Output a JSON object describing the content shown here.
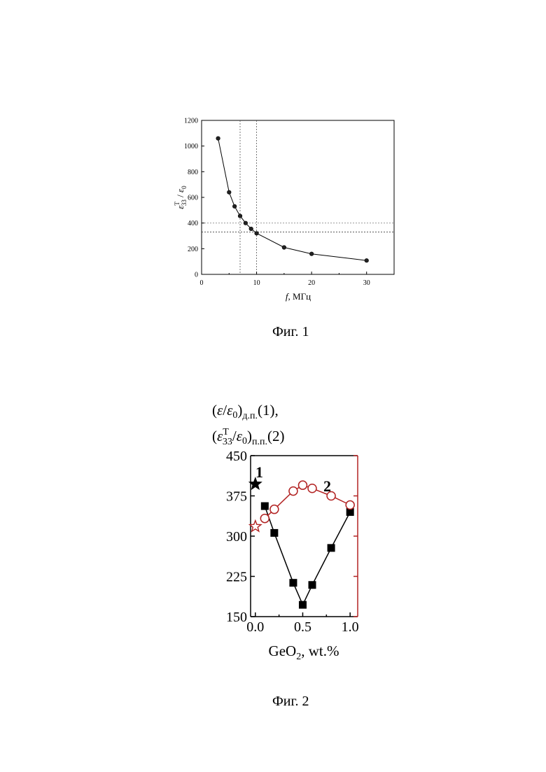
{
  "figures": [
    {
      "caption": "Фиг. 1"
    },
    {
      "caption": "Фиг. 2"
    }
  ],
  "chart_data": [
    {
      "type": "line",
      "title": "",
      "xlabel_var": "f",
      "xlabel_unit": ", МГц",
      "ylabel_sym": "ε",
      "ylabel_sup": "T",
      "ylabel_sub": "33",
      "ylabel_den": "ε",
      "ylabel_den_sub": "0",
      "xlim": [
        0,
        35
      ],
      "ylim": [
        0,
        1200
      ],
      "xticks": [
        0,
        10,
        20,
        30
      ],
      "yticks": [
        0,
        200,
        400,
        600,
        800,
        1000,
        1200
      ],
      "series": [
        {
          "x": [
            3,
            5,
            6,
            7,
            8,
            9,
            10,
            15,
            20,
            30
          ],
          "y": [
            1060,
            640,
            530,
            455,
            400,
            355,
            320,
            210,
            160,
            108
          ]
        }
      ],
      "reference_lines": {
        "vertical": [
          7,
          10
        ],
        "horizontal": [
          400,
          330
        ]
      },
      "grid": false
    },
    {
      "type": "line",
      "title": "",
      "ylabel_line1": "(ε/ε₀)д.п.(1),",
      "ylabel_line1_parts": {
        "open": "(",
        "sym": "ε",
        "slash": "/",
        "den": "ε",
        "den_sub": "0",
        "close": ")",
        "sub": "д.п.",
        "suffix": "(1),"
      },
      "ylabel_line2_parts": {
        "open": "(",
        "sym": "ε",
        "sup": "T",
        "sub33": "33",
        "slash": "/",
        "den": "ε",
        "den_sub": "0",
        "close": ")",
        "sub": "п.п.",
        "suffix": "(2)"
      },
      "xlabel_base": "GeO",
      "xlabel_sub": "2",
      "xlabel_rest": ", wt.%",
      "xlim": [
        -0.05,
        1.08
      ],
      "ylim": [
        150,
        450
      ],
      "xticks": [
        "0.0",
        "0.5",
        "1.0"
      ],
      "yticks": [
        "150",
        "225",
        "300",
        "375",
        "450"
      ],
      "series": [
        {
          "label": "1",
          "color": "#000000",
          "marker": "square",
          "start_marker": {
            "x": 0.0,
            "y": 397,
            "shape": "filled-star"
          },
          "x": [
            0.1,
            0.2,
            0.4,
            0.5,
            0.6,
            0.8,
            1.0
          ],
          "y": [
            356,
            306,
            213,
            172,
            209,
            278,
            345
          ]
        },
        {
          "label": "2",
          "color": "#b22222",
          "marker": "open-circle",
          "start_marker": {
            "x": 0.0,
            "y": 318,
            "shape": "open-star"
          },
          "x": [
            0.1,
            0.2,
            0.4,
            0.5,
            0.6,
            0.8,
            1.0
          ],
          "y": [
            333,
            350,
            384,
            395,
            389,
            375,
            358
          ]
        }
      ],
      "grid": false
    }
  ]
}
